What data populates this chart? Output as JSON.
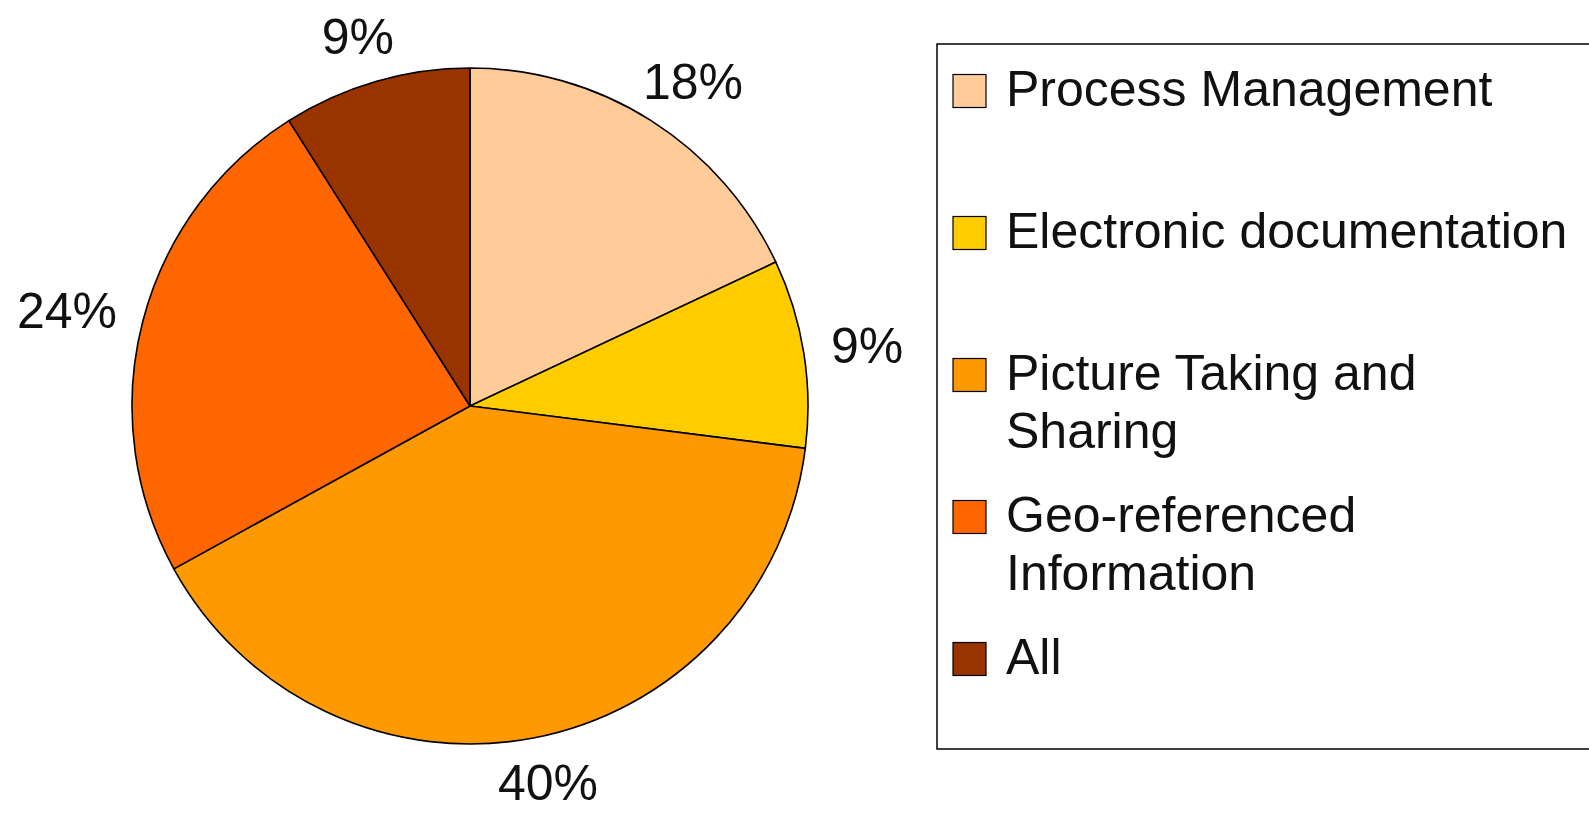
{
  "chart_data": {
    "type": "pie",
    "categories": [
      "Process Management",
      "Electronic documentation",
      "Picture Taking and Sharing",
      "Geo-referenced Information",
      "All"
    ],
    "values": [
      18,
      9,
      40,
      24,
      9
    ],
    "value_labels": [
      "18%",
      "9%",
      "40%",
      "24%",
      "9%"
    ],
    "colors": [
      "#ffcc99",
      "#ffcc00",
      "#ff9900",
      "#ff6600",
      "#993300"
    ],
    "legend": "right"
  }
}
